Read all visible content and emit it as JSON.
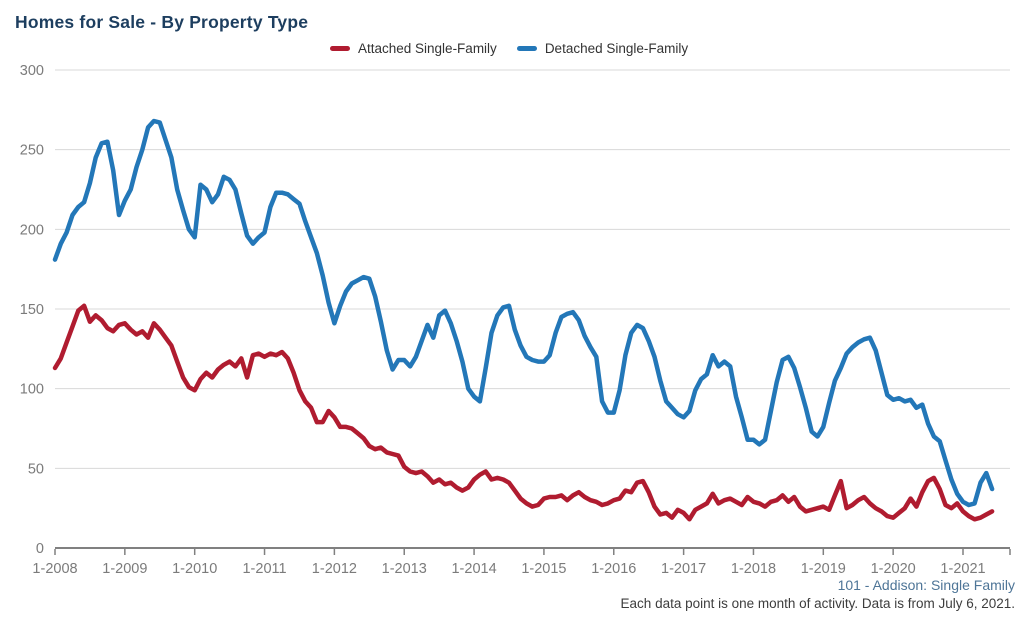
{
  "title": "Homes for Sale - By Property Type",
  "legend": [
    {
      "label": "Attached Single-Family",
      "color": "#b01c30"
    },
    {
      "label": "Detached Single-Family",
      "color": "#2377b8"
    }
  ],
  "footer": {
    "source_label": "101 - Addison: Single Family",
    "note": "Each data point is one month of activity. Data is from July 6, 2021."
  },
  "colors": {
    "title": "#1d3e5f",
    "axis_label": "#7b7b7b",
    "gridline": "#d8d8d8",
    "axis_line": "#808080",
    "attached_series": "#b01c30",
    "detached_series": "#2377b8",
    "footer_source": "#4e7597",
    "footer_note": "#3d3d3d"
  },
  "chart_data": {
    "type": "line",
    "title": "Homes for Sale - By Property Type",
    "x_unit": "month",
    "x_start": "2008-01",
    "x_end": "2021-06",
    "x_tick_labels": [
      "1-2008",
      "1-2009",
      "1-2010",
      "1-2011",
      "1-2012",
      "1-2013",
      "1-2014",
      "1-2015",
      "1-2016",
      "1-2017",
      "1-2018",
      "1-2019",
      "1-2020",
      "1-2021"
    ],
    "y_ticks": [
      0,
      50,
      100,
      150,
      200,
      250,
      300
    ],
    "ylim": [
      0,
      300
    ],
    "grid": "horizontal",
    "legend_position": "top",
    "series": [
      {
        "name": "Attached Single-Family",
        "color": "#b01c30",
        "values": [
          113,
          119,
          129,
          139,
          149,
          152,
          142,
          146,
          143,
          138,
          136,
          140,
          141,
          137,
          134,
          136,
          132,
          141,
          137,
          132,
          127,
          117,
          107,
          101,
          99,
          106,
          110,
          107,
          112,
          115,
          117,
          114,
          119,
          107,
          121,
          122,
          120,
          122,
          121,
          123,
          119,
          110,
          99,
          92,
          88,
          79,
          79,
          86,
          82,
          76,
          76,
          75,
          72,
          69,
          64,
          62,
          63,
          60,
          59,
          58,
          51,
          48,
          47,
          48,
          45,
          41,
          43,
          40,
          41,
          38,
          36,
          38,
          43,
          46,
          48,
          43,
          44,
          43,
          41,
          36,
          31,
          28,
          26,
          27,
          31,
          32,
          32,
          33,
          30,
          33,
          35,
          32,
          30,
          29,
          27,
          28,
          30,
          31,
          36,
          35,
          41,
          42,
          35,
          26,
          21,
          22,
          19,
          24,
          22,
          18,
          24,
          26,
          28,
          34,
          28,
          30,
          31,
          29,
          27,
          32,
          29,
          28,
          26,
          29,
          30,
          33,
          29,
          32,
          26,
          23,
          24,
          25,
          26,
          24,
          33,
          42,
          25,
          27,
          30,
          32,
          28,
          25,
          23,
          20,
          19,
          22,
          25,
          31,
          26,
          35,
          42,
          44,
          37,
          27,
          25,
          28,
          23,
          20,
          18,
          19,
          21,
          23
        ]
      },
      {
        "name": "Detached Single-Family",
        "color": "#2377b8",
        "values": [
          181,
          191,
          198,
          209,
          214,
          217,
          229,
          245,
          254,
          255,
          237,
          209,
          218,
          225,
          239,
          250,
          264,
          268,
          267,
          256,
          245,
          225,
          212,
          200,
          195,
          228,
          225,
          217,
          222,
          233,
          231,
          225,
          210,
          196,
          191,
          195,
          198,
          214,
          223,
          223,
          222,
          219,
          216,
          205,
          195,
          185,
          171,
          154,
          141,
          152,
          161,
          166,
          168,
          170,
          169,
          158,
          142,
          124,
          112,
          118,
          118,
          114,
          120,
          130,
          140,
          132,
          146,
          149,
          141,
          130,
          117,
          100,
          95,
          92,
          113,
          135,
          146,
          151,
          152,
          137,
          127,
          120,
          118,
          117,
          117,
          121,
          135,
          145,
          147,
          148,
          143,
          133,
          126,
          120,
          92,
          85,
          85,
          99,
          121,
          135,
          140,
          138,
          130,
          120,
          105,
          92,
          88,
          84,
          82,
          86,
          99,
          106,
          109,
          121,
          114,
          117,
          114,
          95,
          82,
          68,
          68,
          65,
          68,
          86,
          104,
          118,
          120,
          113,
          101,
          88,
          73,
          70,
          76,
          91,
          105,
          113,
          122,
          126,
          129,
          131,
          132,
          124,
          110,
          96,
          93,
          94,
          92,
          93,
          88,
          90,
          78,
          70,
          67,
          55,
          43,
          34,
          29,
          27,
          28,
          41,
          47,
          37
        ]
      }
    ]
  }
}
